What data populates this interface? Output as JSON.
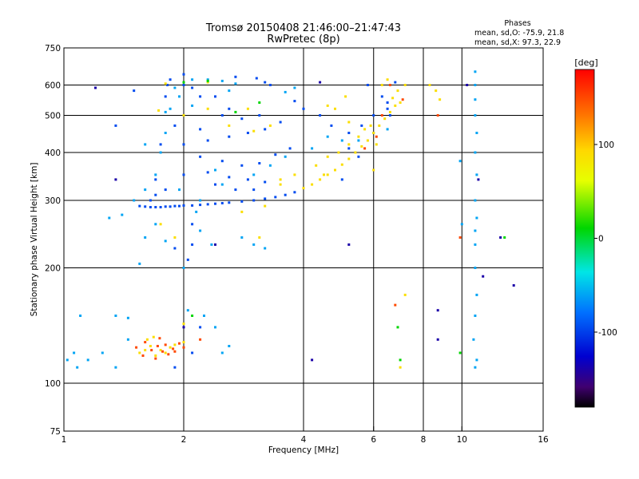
{
  "chart_data": {
    "type": "scatter",
    "title": "Tromsø 20150408 21:46:00–21:47:43",
    "subtitle": "RwPretec (8p)",
    "phases": {
      "heading": "Phases",
      "line_o": "mean, sd,O: -75.9, 21.8",
      "line_x": "mean, sd,X:  97.3, 22.9"
    },
    "xlabel": "Frequency [MHz]",
    "ylabel": "Stationary phase Virtual Height [km]",
    "x_scale": "log",
    "y_scale": "log",
    "xlim": [
      1,
      16
    ],
    "ylim": [
      75,
      750
    ],
    "x_ticks": [
      1,
      2,
      4,
      6,
      8,
      10,
      16
    ],
    "x_tick_labels": [
      "1",
      "2",
      "4",
      "6",
      "8",
      "10",
      "16"
    ],
    "y_ticks": [
      75,
      100,
      200,
      300,
      400,
      500,
      600,
      750
    ],
    "y_tick_labels": [
      "75",
      "100",
      "200",
      "300",
      "400",
      "500",
      "600",
      "750"
    ],
    "grid_x": [
      2,
      4,
      6,
      8,
      10
    ],
    "grid_y": [
      100,
      200,
      300,
      400,
      500,
      600
    ],
    "colorbar": {
      "label": "[deg]",
      "range": [
        -180,
        180
      ],
      "ticks": [
        100,
        0,
        -100
      ],
      "tick_labels": [
        "100",
        "0",
        "-100"
      ]
    },
    "series": [
      {
        "phase": -95,
        "points": [
          [
            1.55,
            290
          ],
          [
            1.6,
            289
          ],
          [
            1.65,
            288
          ],
          [
            1.7,
            288
          ],
          [
            1.75,
            288
          ],
          [
            1.8,
            289
          ],
          [
            1.85,
            289
          ],
          [
            1.9,
            290
          ],
          [
            1.95,
            290
          ],
          [
            2.0,
            291
          ],
          [
            2.1,
            291
          ],
          [
            2.2,
            292
          ],
          [
            2.3,
            293
          ],
          [
            2.4,
            294
          ],
          [
            2.5,
            295
          ],
          [
            2.6,
            296
          ],
          [
            2.8,
            298
          ],
          [
            3.0,
            300
          ],
          [
            3.2,
            303
          ],
          [
            3.4,
            306
          ],
          [
            3.6,
            310
          ],
          [
            3.8,
            315
          ],
          [
            3.2,
            610
          ],
          [
            3.3,
            600
          ],
          [
            3.05,
            625
          ],
          [
            2.7,
            630
          ],
          [
            1.85,
            620
          ],
          [
            2.0,
            640
          ],
          [
            3.8,
            545
          ],
          [
            4.0,
            520
          ],
          [
            4.4,
            500
          ],
          [
            4.7,
            470
          ],
          [
            5.2,
            450
          ],
          [
            5.6,
            470
          ],
          [
            6.0,
            500
          ],
          [
            6.5,
            540
          ],
          [
            5.8,
            600
          ],
          [
            6.8,
            610
          ],
          [
            5.0,
            340
          ],
          [
            2.1,
            120
          ],
          [
            1.9,
            110
          ],
          [
            2.2,
            140
          ],
          [
            1.35,
            470
          ],
          [
            1.5,
            580
          ],
          [
            1.8,
            560
          ],
          [
            2.1,
            590
          ],
          [
            2.4,
            560
          ],
          [
            2.6,
            520
          ],
          [
            1.9,
            470
          ],
          [
            2.2,
            460
          ],
          [
            2.5,
            500
          ],
          [
            1.75,
            420
          ],
          [
            2.0,
            420
          ],
          [
            2.3,
            430
          ],
          [
            2.6,
            440
          ],
          [
            2.9,
            450
          ],
          [
            3.2,
            460
          ],
          [
            3.5,
            480
          ],
          [
            3.1,
            500
          ],
          [
            2.8,
            490
          ],
          [
            2.2,
            390
          ],
          [
            2.5,
            380
          ],
          [
            2.8,
            370
          ],
          [
            3.1,
            375
          ],
          [
            3.4,
            395
          ],
          [
            3.7,
            410
          ],
          [
            1.7,
            340
          ],
          [
            2.0,
            350
          ],
          [
            2.3,
            355
          ],
          [
            2.6,
            345
          ],
          [
            2.9,
            340
          ],
          [
            3.2,
            335
          ],
          [
            2.1,
            260
          ],
          [
            2.1,
            230
          ],
          [
            1.9,
            225
          ],
          [
            2.05,
            210
          ],
          [
            6.3,
            560
          ],
          [
            6.5,
            520
          ],
          [
            6.6,
            500
          ],
          [
            5.2,
            410
          ],
          [
            5.5,
            390
          ],
          [
            1.82,
            600
          ],
          [
            2.0,
            600
          ],
          [
            2.2,
            560
          ],
          [
            1.65,
            300
          ],
          [
            1.7,
            310
          ],
          [
            1.8,
            320
          ],
          [
            2.4,
            330
          ],
          [
            2.7,
            320
          ],
          [
            3.0,
            320
          ]
        ]
      },
      {
        "phase": -60,
        "points": [
          [
            1.3,
            270
          ],
          [
            1.4,
            275
          ],
          [
            1.5,
            300
          ],
          [
            1.6,
            320
          ],
          [
            1.7,
            350
          ],
          [
            1.75,
            400
          ],
          [
            1.8,
            450
          ],
          [
            1.85,
            520
          ],
          [
            1.9,
            590
          ],
          [
            2.1,
            620
          ],
          [
            2.3,
            620
          ],
          [
            2.5,
            615
          ],
          [
            2.7,
            605
          ],
          [
            2.2,
            300
          ],
          [
            2.5,
            330
          ],
          [
            3.0,
            350
          ],
          [
            3.3,
            370
          ],
          [
            3.6,
            390
          ],
          [
            4.2,
            410
          ],
          [
            4.6,
            440
          ],
          [
            5.0,
            430
          ],
          [
            5.5,
            430
          ],
          [
            6.0,
            450
          ],
          [
            6.5,
            460
          ],
          [
            1.08,
            110
          ],
          [
            1.15,
            115
          ],
          [
            1.25,
            120
          ],
          [
            1.35,
            150
          ],
          [
            1.45,
            130
          ],
          [
            2.05,
            155
          ],
          [
            2.25,
            150
          ],
          [
            2.4,
            140
          ],
          [
            2.6,
            125
          ],
          [
            2.0,
            200
          ],
          [
            2.15,
            280
          ],
          [
            2.2,
            250
          ],
          [
            2.35,
            230
          ],
          [
            10.8,
            650
          ],
          [
            10.8,
            600
          ],
          [
            10.8,
            550
          ],
          [
            10.8,
            500
          ],
          [
            10.9,
            450
          ],
          [
            10.8,
            400
          ],
          [
            10.9,
            350
          ],
          [
            10.8,
            300
          ],
          [
            10.9,
            270
          ],
          [
            10.8,
            250
          ],
          [
            10.8,
            230
          ],
          [
            10.8,
            200
          ],
          [
            10.9,
            170
          ],
          [
            10.8,
            150
          ],
          [
            10.7,
            130
          ],
          [
            10.9,
            115
          ],
          [
            10.8,
            110
          ],
          [
            10.0,
            260
          ],
          [
            9.9,
            380
          ],
          [
            1.1,
            150
          ],
          [
            1.35,
            110
          ],
          [
            1.55,
            205
          ],
          [
            1.6,
            240
          ],
          [
            1.7,
            260
          ],
          [
            1.8,
            235
          ],
          [
            2.8,
            240
          ],
          [
            3.0,
            230
          ],
          [
            3.2,
            225
          ],
          [
            1.95,
            320
          ],
          [
            2.4,
            360
          ],
          [
            1.6,
            420
          ],
          [
            1.8,
            510
          ],
          [
            2.1,
            530
          ],
          [
            2.6,
            580
          ],
          [
            1.95,
            560
          ],
          [
            3.6,
            575
          ],
          [
            3.8,
            590
          ],
          [
            1.02,
            115
          ],
          [
            1.06,
            120
          ],
          [
            1.45,
            148
          ],
          [
            2.5,
            120
          ]
        ]
      },
      {
        "phase": 90,
        "points": [
          [
            4.0,
            323
          ],
          [
            4.2,
            330
          ],
          [
            4.4,
            340
          ],
          [
            4.6,
            350
          ],
          [
            4.8,
            360
          ],
          [
            5.0,
            372
          ],
          [
            5.2,
            385
          ],
          [
            5.4,
            400
          ],
          [
            5.6,
            415
          ],
          [
            5.8,
            430
          ],
          [
            6.0,
            450
          ],
          [
            6.2,
            470
          ],
          [
            6.4,
            490
          ],
          [
            6.6,
            510
          ],
          [
            6.8,
            530
          ],
          [
            7.0,
            540
          ],
          [
            4.3,
            370
          ],
          [
            4.6,
            390
          ],
          [
            4.9,
            400
          ],
          [
            5.2,
            420
          ],
          [
            3.8,
            350
          ],
          [
            3.5,
            340
          ],
          [
            6.3,
            600
          ],
          [
            6.5,
            620
          ],
          [
            7.2,
            600
          ],
          [
            8.6,
            580
          ],
          [
            8.8,
            550
          ],
          [
            1.55,
            120
          ],
          [
            1.6,
            122
          ],
          [
            1.65,
            125
          ],
          [
            1.7,
            118
          ],
          [
            1.75,
            122
          ],
          [
            1.8,
            120
          ],
          [
            1.85,
            124
          ],
          [
            1.9,
            126
          ],
          [
            2.0,
            128
          ],
          [
            1.62,
            130
          ],
          [
            1.68,
            132
          ],
          [
            2.0,
            143
          ],
          [
            1.9,
            240
          ],
          [
            1.75,
            260
          ],
          [
            3.1,
            240
          ],
          [
            3.2,
            290
          ],
          [
            2.8,
            280
          ],
          [
            6.0,
            360
          ],
          [
            6.1,
            420
          ],
          [
            7.2,
            170
          ],
          [
            7.0,
            110
          ],
          [
            3.5,
            330
          ],
          [
            4.5,
            350
          ],
          [
            5.7,
            460
          ],
          [
            6.9,
            580
          ],
          [
            8.3,
            600
          ],
          [
            1.73,
            515
          ],
          [
            2.0,
            500
          ],
          [
            2.3,
            520
          ],
          [
            1.8,
            605
          ],
          [
            2.3,
            610
          ],
          [
            4.6,
            530
          ],
          [
            5.2,
            480
          ],
          [
            3.0,
            455
          ],
          [
            3.3,
            470
          ],
          [
            5.5,
            440
          ],
          [
            5.9,
            470
          ],
          [
            6.7,
            555
          ],
          [
            4.8,
            520
          ],
          [
            5.1,
            560
          ],
          [
            2.6,
            470
          ],
          [
            2.9,
            520
          ]
        ]
      },
      {
        "phase": 150,
        "points": [
          [
            1.58,
            118
          ],
          [
            1.66,
            122
          ],
          [
            1.72,
            125
          ],
          [
            1.77,
            121
          ],
          [
            1.83,
            119
          ],
          [
            1.88,
            123
          ],
          [
            1.95,
            127
          ],
          [
            1.6,
            128
          ],
          [
            1.7,
            116
          ],
          [
            1.8,
            126
          ],
          [
            1.9,
            121
          ],
          [
            2.0,
            124
          ],
          [
            6.8,
            160
          ],
          [
            7.1,
            550
          ],
          [
            8.7,
            500
          ],
          [
            6.6,
            600
          ],
          [
            2.2,
            130
          ],
          [
            5.7,
            410
          ],
          [
            6.1,
            440
          ],
          [
            6.3,
            500
          ],
          [
            9.9,
            240
          ],
          [
            1.52,
            124
          ],
          [
            1.74,
            131
          ]
        ]
      },
      {
        "phase": 10,
        "points": [
          [
            2.1,
            150
          ],
          [
            2.0,
            610
          ],
          [
            2.3,
            615
          ],
          [
            6.9,
            140
          ],
          [
            7.0,
            115
          ],
          [
            9.9,
            120
          ],
          [
            12.8,
            240
          ],
          [
            2.7,
            510
          ],
          [
            3.1,
            540
          ]
        ]
      },
      {
        "phase": -140,
        "points": [
          [
            1.2,
            590
          ],
          [
            1.35,
            340
          ],
          [
            13.5,
            180
          ],
          [
            12.5,
            240
          ],
          [
            11.3,
            190
          ],
          [
            10.3,
            600
          ],
          [
            11.0,
            340
          ],
          [
            8.7,
            130
          ],
          [
            8.7,
            155
          ],
          [
            5.2,
            230
          ],
          [
            4.2,
            115
          ],
          [
            2.0,
            140
          ],
          [
            2.4,
            230
          ],
          [
            4.4,
            610
          ]
        ]
      }
    ]
  }
}
